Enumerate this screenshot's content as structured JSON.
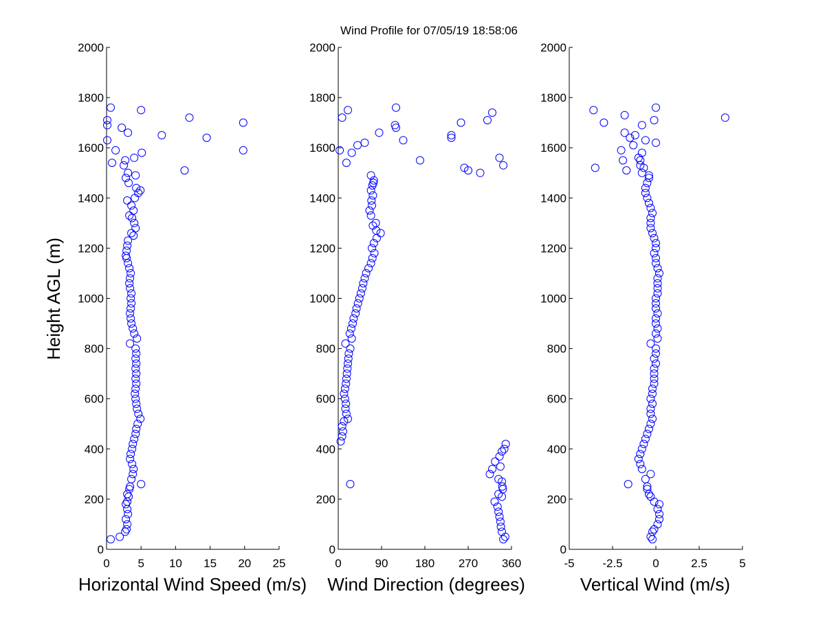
{
  "figure_title": "Wind Profile for  07/05/19 18:58:06",
  "chart_data": [
    {
      "type": "scatter",
      "title": "",
      "xlabel": "Horizontal Wind Speed (m/s)",
      "ylabel": "Height AGL (m)",
      "xlim": [
        0,
        25
      ],
      "ylim": [
        0,
        2000
      ],
      "xticks": [
        "0",
        "5",
        "10",
        "15",
        "20",
        "25"
      ],
      "yticks": [
        "0",
        "200",
        "400",
        "600",
        "800",
        "1000",
        "1200",
        "1400",
        "1600",
        "1800",
        "2000"
      ],
      "marker": "open-circle",
      "color": "#0000ff",
      "points": [
        [
          0.6,
          40
        ],
        [
          1.9,
          50
        ],
        [
          2.7,
          70
        ],
        [
          2.9,
          80
        ],
        [
          3.0,
          100
        ],
        [
          2.8,
          120
        ],
        [
          3.1,
          140
        ],
        [
          3.0,
          160
        ],
        [
          2.8,
          180
        ],
        [
          3.0,
          190
        ],
        [
          3.2,
          210
        ],
        [
          3.0,
          220
        ],
        [
          3.3,
          240
        ],
        [
          3.4,
          250
        ],
        [
          5.0,
          260
        ],
        [
          3.6,
          280
        ],
        [
          3.8,
          300
        ],
        [
          3.9,
          320
        ],
        [
          3.7,
          340
        ],
        [
          3.4,
          360
        ],
        [
          3.5,
          380
        ],
        [
          3.7,
          400
        ],
        [
          3.8,
          420
        ],
        [
          4.0,
          440
        ],
        [
          4.2,
          460
        ],
        [
          4.3,
          480
        ],
        [
          4.5,
          500
        ],
        [
          4.9,
          520
        ],
        [
          4.6,
          540
        ],
        [
          4.4,
          560
        ],
        [
          4.3,
          580
        ],
        [
          4.2,
          600
        ],
        [
          4.1,
          620
        ],
        [
          4.2,
          640
        ],
        [
          4.3,
          660
        ],
        [
          4.2,
          680
        ],
        [
          4.3,
          700
        ],
        [
          4.2,
          720
        ],
        [
          4.3,
          740
        ],
        [
          4.2,
          760
        ],
        [
          4.3,
          780
        ],
        [
          4.2,
          800
        ],
        [
          3.4,
          820
        ],
        [
          4.4,
          840
        ],
        [
          4.0,
          860
        ],
        [
          3.8,
          880
        ],
        [
          3.6,
          900
        ],
        [
          3.5,
          920
        ],
        [
          3.4,
          940
        ],
        [
          3.5,
          960
        ],
        [
          3.6,
          980
        ],
        [
          3.5,
          1000
        ],
        [
          3.6,
          1020
        ],
        [
          3.4,
          1040
        ],
        [
          3.3,
          1060
        ],
        [
          3.4,
          1080
        ],
        [
          3.5,
          1100
        ],
        [
          3.3,
          1120
        ],
        [
          3.1,
          1140
        ],
        [
          2.9,
          1160
        ],
        [
          2.8,
          1170
        ],
        [
          2.9,
          1190
        ],
        [
          3.0,
          1210
        ],
        [
          3.1,
          1230
        ],
        [
          3.9,
          1250
        ],
        [
          3.6,
          1260
        ],
        [
          4.2,
          1280
        ],
        [
          4.0,
          1300
        ],
        [
          3.7,
          1320
        ],
        [
          3.3,
          1330
        ],
        [
          3.9,
          1350
        ],
        [
          3.6,
          1370
        ],
        [
          3.0,
          1390
        ],
        [
          4.1,
          1400
        ],
        [
          4.6,
          1420
        ],
        [
          4.9,
          1430
        ],
        [
          4.3,
          1440
        ],
        [
          3.2,
          1460
        ],
        [
          2.8,
          1480
        ],
        [
          3.1,
          1500
        ],
        [
          4.2,
          1490
        ],
        [
          2.5,
          1530
        ],
        [
          2.7,
          1550
        ],
        [
          4.0,
          1560
        ],
        [
          0.8,
          1540
        ],
        [
          5.1,
          1580
        ],
        [
          1.3,
          1590
        ],
        [
          0.1,
          1630
        ],
        [
          3.1,
          1660
        ],
        [
          2.2,
          1680
        ],
        [
          0.1,
          1690
        ],
        [
          0.1,
          1710
        ],
        [
          0.6,
          1760
        ],
        [
          5.0,
          1750
        ],
        [
          12.0,
          1720
        ],
        [
          8.0,
          1650
        ],
        [
          14.5,
          1640
        ],
        [
          11.3,
          1510
        ],
        [
          19.8,
          1700
        ],
        [
          19.8,
          1590
        ]
      ]
    },
    {
      "type": "scatter",
      "title": "",
      "xlabel": "Wind Direction (degrees)",
      "ylabel": "",
      "xlim": [
        0,
        360
      ],
      "ylim": [
        0,
        2000
      ],
      "xticks": [
        "0",
        "90",
        "180",
        "270",
        "360"
      ],
      "yticks": [
        "0",
        "200",
        "400",
        "600",
        "800",
        "1000",
        "1200",
        "1400",
        "1600",
        "1800",
        "2000"
      ],
      "marker": "open-circle",
      "color": "#0000ff",
      "points": [
        [
          343,
          40
        ],
        [
          347,
          50
        ],
        [
          340,
          70
        ],
        [
          338,
          90
        ],
        [
          337,
          110
        ],
        [
          335,
          130
        ],
        [
          333,
          150
        ],
        [
          331,
          170
        ],
        [
          325,
          190
        ],
        [
          340,
          210
        ],
        [
          333,
          220
        ],
        [
          342,
          240
        ],
        [
          341,
          250
        ],
        [
          340,
          270
        ],
        [
          333,
          280
        ],
        [
          315,
          300
        ],
        [
          320,
          320
        ],
        [
          337,
          330
        ],
        [
          326,
          350
        ],
        [
          335,
          370
        ],
        [
          340,
          390
        ],
        [
          345,
          400
        ],
        [
          348,
          420
        ],
        [
          5,
          430
        ],
        [
          8,
          450
        ],
        [
          10,
          470
        ],
        [
          8,
          490
        ],
        [
          12,
          510
        ],
        [
          20,
          520
        ],
        [
          17,
          540
        ],
        [
          15,
          560
        ],
        [
          16,
          580
        ],
        [
          14,
          600
        ],
        [
          12,
          620
        ],
        [
          14,
          640
        ],
        [
          16,
          660
        ],
        [
          17,
          680
        ],
        [
          18,
          700
        ],
        [
          19,
          720
        ],
        [
          20,
          740
        ],
        [
          21,
          760
        ],
        [
          22,
          780
        ],
        [
          25,
          800
        ],
        [
          15,
          820
        ],
        [
          28,
          840
        ],
        [
          24,
          860
        ],
        [
          27,
          880
        ],
        [
          30,
          900
        ],
        [
          32,
          920
        ],
        [
          36,
          940
        ],
        [
          38,
          960
        ],
        [
          41,
          980
        ],
        [
          44,
          1000
        ],
        [
          47,
          1020
        ],
        [
          50,
          1040
        ],
        [
          52,
          1060
        ],
        [
          55,
          1080
        ],
        [
          58,
          1100
        ],
        [
          63,
          1120
        ],
        [
          68,
          1140
        ],
        [
          71,
          1160
        ],
        [
          75,
          1180
        ],
        [
          70,
          1200
        ],
        [
          74,
          1220
        ],
        [
          80,
          1240
        ],
        [
          88,
          1260
        ],
        [
          79,
          1270
        ],
        [
          72,
          1290
        ],
        [
          78,
          1300
        ],
        [
          68,
          1330
        ],
        [
          65,
          1350
        ],
        [
          70,
          1370
        ],
        [
          69,
          1390
        ],
        [
          72,
          1410
        ],
        [
          68,
          1430
        ],
        [
          71,
          1450
        ],
        [
          74,
          1470
        ],
        [
          68,
          1490
        ],
        [
          73,
          1460
        ],
        [
          25,
          260
        ],
        [
          20,
          1750
        ],
        [
          8,
          1720
        ],
        [
          17,
          1540
        ],
        [
          3,
          1590
        ],
        [
          28,
          1580
        ],
        [
          40,
          1610
        ],
        [
          55,
          1620
        ],
        [
          120,
          1680
        ],
        [
          120,
          1760
        ],
        [
          135,
          1630
        ],
        [
          85,
          1660
        ],
        [
          170,
          1550
        ],
        [
          235,
          1640
        ],
        [
          235,
          1650
        ],
        [
          255,
          1700
        ],
        [
          262,
          1520
        ],
        [
          270,
          1510
        ],
        [
          295,
          1500
        ],
        [
          310,
          1710
        ],
        [
          320,
          1740
        ],
        [
          335,
          1560
        ],
        [
          343,
          1530
        ],
        [
          118,
          1690
        ]
      ]
    },
    {
      "type": "scatter",
      "title": "",
      "xlabel": "Vertical Wind (m/s)",
      "ylabel": "",
      "xlim": [
        -5,
        5
      ],
      "ylim": [
        0,
        2000
      ],
      "xticks": [
        "-5",
        "-2.5",
        "0",
        "2.5",
        "5"
      ],
      "yticks": [
        "0",
        "200",
        "400",
        "600",
        "800",
        "1000",
        "1200",
        "1400",
        "1600",
        "1800",
        "2000"
      ],
      "marker": "open-circle",
      "color": "#0000ff",
      "points": [
        [
          -0.2,
          40
        ],
        [
          -0.3,
          50
        ],
        [
          -0.2,
          70
        ],
        [
          -0.1,
          80
        ],
        [
          0.1,
          100
        ],
        [
          0.2,
          120
        ],
        [
          0.2,
          140
        ],
        [
          0.1,
          160
        ],
        [
          0.2,
          180
        ],
        [
          -0.1,
          190
        ],
        [
          -0.3,
          210
        ],
        [
          -0.4,
          220
        ],
        [
          -0.5,
          240
        ],
        [
          -0.5,
          250
        ],
        [
          -1.6,
          260
        ],
        [
          -0.6,
          280
        ],
        [
          -0.3,
          300
        ],
        [
          -0.8,
          320
        ],
        [
          -0.9,
          340
        ],
        [
          -1.0,
          360
        ],
        [
          -0.9,
          380
        ],
        [
          -0.8,
          400
        ],
        [
          -0.7,
          420
        ],
        [
          -0.6,
          440
        ],
        [
          -0.5,
          460
        ],
        [
          -0.4,
          480
        ],
        [
          -0.3,
          500
        ],
        [
          -0.2,
          520
        ],
        [
          -0.3,
          540
        ],
        [
          -0.3,
          560
        ],
        [
          -0.2,
          580
        ],
        [
          -0.3,
          600
        ],
        [
          -0.2,
          620
        ],
        [
          -0.2,
          640
        ],
        [
          -0.1,
          660
        ],
        [
          -0.1,
          680
        ],
        [
          -0.1,
          700
        ],
        [
          -0.1,
          720
        ],
        [
          0.0,
          740
        ],
        [
          -0.1,
          760
        ],
        [
          0.0,
          780
        ],
        [
          0.0,
          800
        ],
        [
          -0.3,
          820
        ],
        [
          0.1,
          840
        ],
        [
          0.0,
          860
        ],
        [
          0.1,
          880
        ],
        [
          0.0,
          900
        ],
        [
          0.0,
          920
        ],
        [
          0.1,
          940
        ],
        [
          0.0,
          960
        ],
        [
          0.0,
          980
        ],
        [
          0.0,
          1000
        ],
        [
          0.1,
          1020
        ],
        [
          0.1,
          1040
        ],
        [
          0.1,
          1060
        ],
        [
          0.1,
          1080
        ],
        [
          0.2,
          1100
        ],
        [
          0.1,
          1120
        ],
        [
          0.0,
          1140
        ],
        [
          0.0,
          1160
        ],
        [
          -0.1,
          1180
        ],
        [
          0.0,
          1200
        ],
        [
          0.0,
          1220
        ],
        [
          -0.1,
          1240
        ],
        [
          -0.2,
          1260
        ],
        [
          -0.3,
          1280
        ],
        [
          -0.3,
          1300
        ],
        [
          -0.3,
          1320
        ],
        [
          -0.2,
          1340
        ],
        [
          -0.3,
          1360
        ],
        [
          -0.4,
          1380
        ],
        [
          -0.5,
          1400
        ],
        [
          -0.6,
          1420
        ],
        [
          -0.6,
          1440
        ],
        [
          -0.5,
          1460
        ],
        [
          -0.4,
          1480
        ],
        [
          -0.4,
          1490
        ],
        [
          -0.8,
          1500
        ],
        [
          -0.7,
          1520
        ],
        [
          -0.9,
          1530
        ],
        [
          -0.9,
          1550
        ],
        [
          -0.8,
          1580
        ],
        [
          -1.0,
          1560
        ],
        [
          -1.3,
          1610
        ],
        [
          -1.7,
          1510
        ],
        [
          -1.9,
          1550
        ],
        [
          -2.0,
          1590
        ],
        [
          -1.8,
          1660
        ],
        [
          -1.5,
          1640
        ],
        [
          -1.2,
          1650
        ],
        [
          -0.6,
          1630
        ],
        [
          0.0,
          1620
        ],
        [
          -0.1,
          1710
        ],
        [
          0.0,
          1760
        ],
        [
          -0.8,
          1690
        ],
        [
          -1.8,
          1730
        ],
        [
          -3.0,
          1700
        ],
        [
          -3.6,
          1750
        ],
        [
          -3.5,
          1520
        ],
        [
          4.0,
          1720
        ]
      ]
    }
  ]
}
